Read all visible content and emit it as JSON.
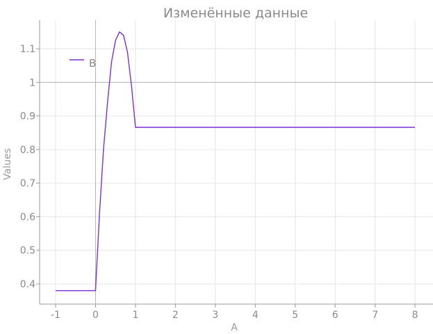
{
  "chart_data": {
    "type": "line",
    "title": "Изменённые данные",
    "xlabel": "A",
    "ylabel": "Values",
    "xlim": [
      -1.4,
      8.45
    ],
    "ylim": [
      0.34,
      1.185
    ],
    "xticks": [
      -1,
      0,
      1,
      2,
      3,
      4,
      5,
      6,
      7,
      8
    ],
    "yticks": [
      0.4,
      0.5,
      0.6,
      0.7,
      0.8,
      0.9,
      1,
      1.1
    ],
    "xtick_labels": [
      "-1",
      "0",
      "1",
      "2",
      "3",
      "4",
      "5",
      "6",
      "7",
      "8"
    ],
    "ytick_labels": [
      "0.4",
      "0.5",
      "0.6",
      "0.7",
      "0.8",
      "0.9",
      "1",
      "1.1"
    ],
    "grid": true,
    "reference_line_y": 1,
    "legend_position": "top-left",
    "series": [
      {
        "name": "B",
        "color": "#7b2fd6",
        "x": [
          -1,
          0,
          0.1,
          0.2,
          0.3,
          0.4,
          0.5,
          0.6,
          0.7,
          0.8,
          0.9,
          1,
          2,
          3,
          4,
          5,
          6,
          7,
          8
        ],
        "y": [
          0.38,
          0.38,
          0.61,
          0.8,
          0.94,
          1.06,
          1.125,
          1.15,
          1.14,
          1.09,
          0.99,
          0.866,
          0.866,
          0.866,
          0.866,
          0.866,
          0.866,
          0.866,
          0.866
        ]
      }
    ]
  }
}
